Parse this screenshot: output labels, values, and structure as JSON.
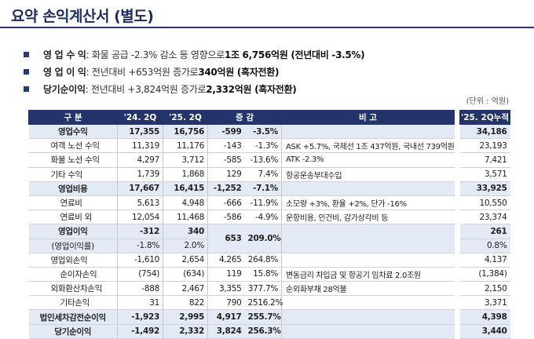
{
  "title": "요약 손익계산서 (별도)",
  "bullets": [
    {
      "label": "영 업 수 익",
      "text": " : 화물 공급 -2.3% 감소 등 영향으로 ",
      "highlight": "1조 6,756억원 (전년대비 -3.5%)"
    },
    {
      "label": "영 업 이 익",
      "text": " : 전년대비 +653억원 증가로 ",
      "highlight": "340억원 (흑자전환)"
    },
    {
      "label": "당기순이익",
      "text": " : 전년대비 +3,824억원 증가로 ",
      "highlight": "2,332억원 (흑자전환)"
    }
  ],
  "unit": "(단위 : 억원)",
  "headers": {
    "item": "구 분",
    "p1": "'24. 2Q",
    "p2": "'25. 2Q",
    "change": "증 감",
    "note": "비 고",
    "cum": "'25. 2Q누적"
  },
  "rows": [
    {
      "label": "영업수익",
      "v1": "17,355",
      "v2": "16,756",
      "d": "-599",
      "r": "-3.5%",
      "note": "",
      "cum": "34,186",
      "style": "hl",
      "indent": "ctr"
    },
    {
      "label": "여객 노선 수익",
      "v1": "11,319",
      "v2": "11,176",
      "d": "-143",
      "r": "-1.3%",
      "note": "ASK +5.7%, 국제선 1조 437억원, 국내선 739억원",
      "cum": "23,193",
      "style": "",
      "indent": "ind1"
    },
    {
      "label": "화물 노선 수익",
      "v1": "4,297",
      "v2": "3,712",
      "d": "-585",
      "r": "-13.6%",
      "note": "ATK -2.3%",
      "cum": "7,421",
      "style": "",
      "indent": "ind1"
    },
    {
      "label": "기타 수익",
      "v1": "1,739",
      "v2": "1,868",
      "d": "129",
      "r": "7.4%",
      "note": "항공운송부대수입",
      "cum": "3,571",
      "style": "",
      "indent": "ind1"
    },
    {
      "label": "영업비용",
      "v1": "17,667",
      "v2": "16,415",
      "d": "-1,252",
      "r": "-7.1%",
      "note": "",
      "cum": "33,925",
      "style": "hl",
      "indent": "ctr"
    },
    {
      "label": "연료비",
      "v1": "5,613",
      "v2": "4,948",
      "d": "-666",
      "r": "-11.9%",
      "note": "소모량 +3%, 환율 +2%, 단가 -16%",
      "cum": "10,550",
      "style": "",
      "indent": "ind2"
    },
    {
      "label": "연료비 외",
      "v1": "12,054",
      "v2": "11,468",
      "d": "-586",
      "r": "-4.9%",
      "note": "운항비용, 인건비, 감가상각비 등",
      "cum": "23,374",
      "style": "",
      "indent": "ind2"
    }
  ],
  "op_income": {
    "label": "영업이익",
    "v1": "-312",
    "v2": "340",
    "d": "653",
    "r": "209.0%",
    "cum": "261"
  },
  "op_margin": {
    "label": "(영업이익률)",
    "v1": "-1.8%",
    "v2": "2.0%",
    "cum": "0.8%"
  },
  "rows2": [
    {
      "label": "영업외손익",
      "v1": "-1,610",
      "v2": "2,654",
      "d": "4,265",
      "r": "264.8%",
      "note": "",
      "cum": "4,137",
      "style": "",
      "indent": "ind1"
    },
    {
      "label": "순이자손익",
      "v1": "(754)",
      "v2": "(634)",
      "d": "119",
      "r": "15.8%",
      "note": "변동금리 차입금 및 항공기 임차료 2.0조원",
      "cum": "(1,384)",
      "style": "",
      "indent": "ind2"
    },
    {
      "label": "외화환산차손익",
      "v1": "-888",
      "v2": "2,467",
      "d": "3,355",
      "r": "377.7%",
      "note": "순외화부채 28억불",
      "cum": "2,150",
      "style": "",
      "indent": "ind1"
    },
    {
      "label": "기타손익",
      "v1": "31",
      "v2": "822",
      "d": "790",
      "r": "2516.2%",
      "note": "",
      "cum": "3,371",
      "style": "",
      "indent": "ind2"
    },
    {
      "label": "법인세차감전순이익",
      "v1": "-1,923",
      "v2": "2,995",
      "d": "4,917",
      "r": "255.7%",
      "note": "",
      "cum": "4,398",
      "style": "hl",
      "indent": "ctr"
    },
    {
      "label": "당기순이익",
      "v1": "-1,492",
      "v2": "2,332",
      "d": "3,824",
      "r": "256.3%",
      "note": "",
      "cum": "3,440",
      "style": "hl",
      "indent": "ctr"
    }
  ]
}
